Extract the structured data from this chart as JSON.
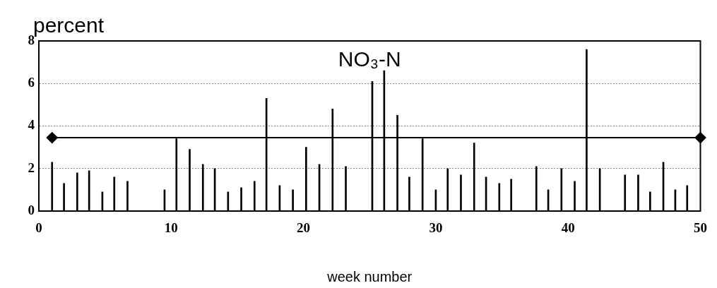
{
  "chart_data": {
    "type": "bar",
    "title": "NO₃-N",
    "ylabel": "percent",
    "xlabel": "week number",
    "x": [
      1.0,
      1.9,
      2.9,
      3.8,
      4.8,
      5.7,
      6.7,
      9.5,
      10.4,
      11.4,
      12.4,
      13.3,
      14.3,
      15.3,
      16.3,
      17.2,
      18.2,
      19.2,
      20.2,
      21.2,
      22.2,
      23.2,
      25.2,
      26.1,
      27.1,
      28.0,
      29.0,
      30.0,
      30.9,
      31.9,
      32.9,
      33.8,
      34.8,
      35.7,
      37.6,
      38.5,
      39.5,
      40.5,
      41.4,
      42.4,
      44.3,
      45.3,
      46.2,
      47.2,
      48.1,
      49.0
    ],
    "series": [
      {
        "color": "#000000",
        "values": [
          2.3,
          1.3,
          1.8,
          1.9,
          0.9,
          1.6,
          1.4,
          1.0,
          3.4,
          2.9,
          2.2,
          2.0,
          0.9,
          1.1,
          1.4,
          5.3,
          1.2,
          1.0,
          3.0,
          2.2,
          4.8,
          2.1,
          6.1,
          6.6,
          4.5,
          1.6,
          3.4,
          1.0,
          2.0,
          1.7,
          3.2,
          1.6,
          1.3,
          1.5,
          2.1,
          1.0,
          2.0,
          1.4,
          7.6,
          2.0,
          1.7,
          1.7,
          0.9,
          2.3,
          1.0,
          1.2
        ]
      },
      {
        "type": "line",
        "color": "#000000",
        "x": [
          1.0,
          50
        ],
        "values": [
          3.45,
          3.45
        ],
        "marker": "diamond",
        "line_style": "solid"
      }
    ],
    "xlim": [
      0,
      50
    ],
    "xticks": [
      0,
      10,
      20,
      30,
      40,
      50
    ],
    "ylim": [
      0,
      8
    ],
    "yticks": [
      0,
      2,
      4,
      6,
      8
    ],
    "grid": "y",
    "legend": false
  }
}
